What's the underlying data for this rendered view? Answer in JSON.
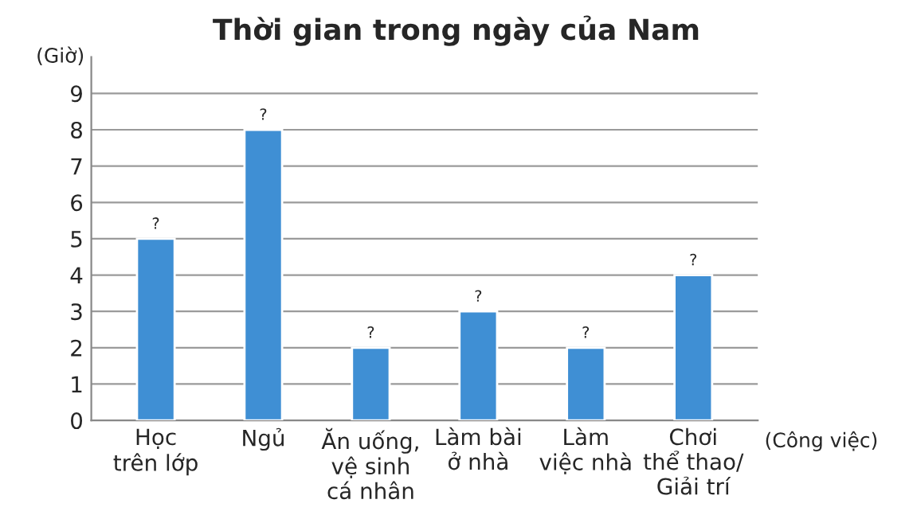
{
  "chart_data": {
    "type": "bar",
    "title": "Thời gian trong ngày của Nam",
    "xlabel": "(Công việc)",
    "ylabel": "(Giờ)",
    "categories": [
      "Học\ntrên lớp",
      "Ngủ",
      "Ăn uống,\nvệ sinh\ncá nhân",
      "Làm bài\nở nhà",
      "Làm\nviệc nhà",
      "Chơi\nthể thao/\nGiải trí"
    ],
    "values": [
      5,
      8,
      2,
      3,
      2,
      4
    ],
    "value_labels": [
      "?",
      "?",
      "?",
      "?",
      "?",
      "?"
    ],
    "color": "#3f8fd4",
    "ylim": [
      0,
      10
    ],
    "yticks": [
      0,
      1,
      2,
      3,
      4,
      5,
      6,
      7,
      8,
      9
    ],
    "grid": "y",
    "legend": false
  }
}
